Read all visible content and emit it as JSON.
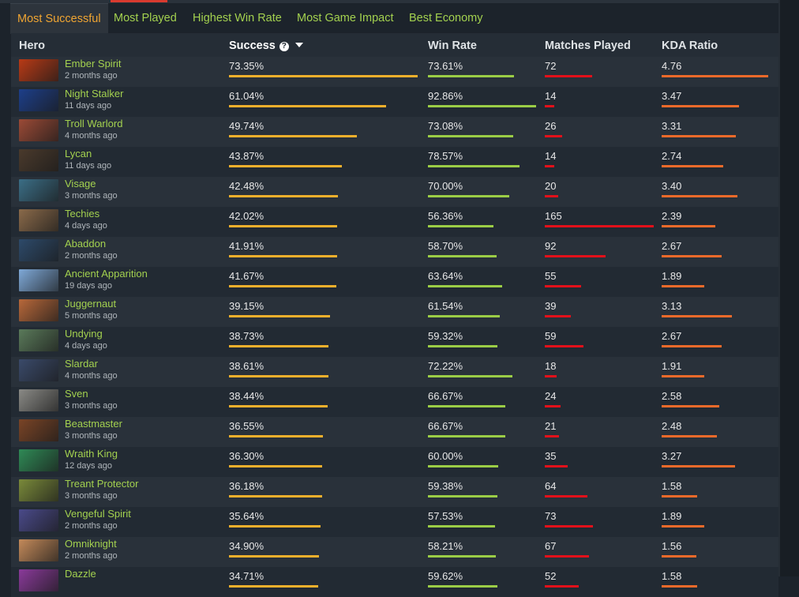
{
  "tabs": [
    {
      "label": "Most Successful",
      "active": true
    },
    {
      "label": "Most Played",
      "active": false
    },
    {
      "label": "Highest Win Rate",
      "active": false
    },
    {
      "label": "Most Game Impact",
      "active": false
    },
    {
      "label": "Best Economy",
      "active": false
    }
  ],
  "columns": {
    "hero": "Hero",
    "success": "Success",
    "help_glyph": "?",
    "win_rate": "Win Rate",
    "matches": "Matches Played",
    "kda": "KDA Ratio"
  },
  "bar_colors": {
    "success": "#f2b02c",
    "win_rate": "#9bcd46",
    "matches": "#e3101a",
    "kda": "#ef6a2a"
  },
  "rows": [
    {
      "hero": "Ember Spirit",
      "last_played": "2 months ago",
      "success": "73.35%",
      "win_rate": "73.61%",
      "matches": "72",
      "kda": "4.76",
      "color": "#b83a16"
    },
    {
      "hero": "Night Stalker",
      "last_played": "11 days ago",
      "success": "61.04%",
      "win_rate": "92.86%",
      "matches": "14",
      "kda": "3.47",
      "color": "#1d3f8a"
    },
    {
      "hero": "Troll Warlord",
      "last_played": "4 months ago",
      "success": "49.74%",
      "win_rate": "73.08%",
      "matches": "26",
      "kda": "3.31",
      "color": "#9b4a36"
    },
    {
      "hero": "Lycan",
      "last_played": "11 days ago",
      "success": "43.87%",
      "win_rate": "78.57%",
      "matches": "14",
      "kda": "2.74",
      "color": "#4a3a2c"
    },
    {
      "hero": "Visage",
      "last_played": "3 months ago",
      "success": "42.48%",
      "win_rate": "70.00%",
      "matches": "20",
      "kda": "3.40",
      "color": "#3b6e86"
    },
    {
      "hero": "Techies",
      "last_played": "4 days ago",
      "success": "42.02%",
      "win_rate": "56.36%",
      "matches": "165",
      "kda": "2.39",
      "color": "#8a6a4a"
    },
    {
      "hero": "Abaddon",
      "last_played": "2 months ago",
      "success": "41.91%",
      "win_rate": "58.70%",
      "matches": "92",
      "kda": "2.67",
      "color": "#2d4a6a"
    },
    {
      "hero": "Ancient Apparition",
      "last_played": "19 days ago",
      "success": "41.67%",
      "win_rate": "63.64%",
      "matches": "55",
      "kda": "1.89",
      "color": "#7fa9d8"
    },
    {
      "hero": "Juggernaut",
      "last_played": "5 months ago",
      "success": "39.15%",
      "win_rate": "61.54%",
      "matches": "39",
      "kda": "3.13",
      "color": "#b8683a"
    },
    {
      "hero": "Undying",
      "last_played": "4 days ago",
      "success": "38.73%",
      "win_rate": "59.32%",
      "matches": "59",
      "kda": "2.67",
      "color": "#5a7a5a"
    },
    {
      "hero": "Slardar",
      "last_played": "4 months ago",
      "success": "38.61%",
      "win_rate": "72.22%",
      "matches": "18",
      "kda": "1.91",
      "color": "#3a4a6a"
    },
    {
      "hero": "Sven",
      "last_played": "3 months ago",
      "success": "38.44%",
      "win_rate": "66.67%",
      "matches": "24",
      "kda": "2.58",
      "color": "#8a8a86"
    },
    {
      "hero": "Beastmaster",
      "last_played": "3 months ago",
      "success": "36.55%",
      "win_rate": "66.67%",
      "matches": "21",
      "kda": "2.48",
      "color": "#7a4426"
    },
    {
      "hero": "Wraith King",
      "last_played": "12 days ago",
      "success": "36.30%",
      "win_rate": "60.00%",
      "matches": "35",
      "kda": "3.27",
      "color": "#2f8a56"
    },
    {
      "hero": "Treant Protector",
      "last_played": "3 months ago",
      "success": "36.18%",
      "win_rate": "59.38%",
      "matches": "64",
      "kda": "1.58",
      "color": "#7a8a3a"
    },
    {
      "hero": "Vengeful Spirit",
      "last_played": "2 months ago",
      "success": "35.64%",
      "win_rate": "57.53%",
      "matches": "73",
      "kda": "1.89",
      "color": "#4a4a8a"
    },
    {
      "hero": "Omniknight",
      "last_played": "2 months ago",
      "success": "34.90%",
      "win_rate": "58.21%",
      "matches": "67",
      "kda": "1.56",
      "color": "#c48a5a"
    },
    {
      "hero": "Dazzle",
      "last_played": "",
      "success": "34.71%",
      "win_rate": "59.62%",
      "matches": "52",
      "kda": "1.58",
      "color": "#8a3a9a"
    }
  ]
}
